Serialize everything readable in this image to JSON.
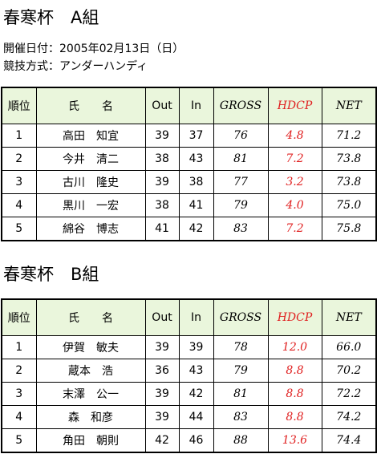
{
  "sections": [
    {
      "title": "春寒杯　A組",
      "info": [
        "開催日付：2005年02月13日（日）",
        "競技方式：アンダーハンディ"
      ],
      "table": {
        "columns": [
          "順位",
          "氏　　名",
          "Out",
          "In",
          "GROSS",
          "HDCP",
          "NET"
        ],
        "rows": [
          [
            "1",
            "高田　知宜",
            "39",
            "37",
            "76",
            "4.8",
            "71.2"
          ],
          [
            "2",
            "今井　清二",
            "38",
            "43",
            "81",
            "7.2",
            "73.8"
          ],
          [
            "3",
            "古川　隆史",
            "39",
            "38",
            "77",
            "3.2",
            "73.8"
          ],
          [
            "4",
            "黒川　一宏",
            "38",
            "41",
            "79",
            "4.0",
            "75.0"
          ],
          [
            "5",
            "綿谷　博志",
            "41",
            "42",
            "83",
            "7.2",
            "75.8"
          ]
        ]
      }
    },
    {
      "title": "春寒杯　B組",
      "table": {
        "columns": [
          "順位",
          "氏　　名",
          "Out",
          "In",
          "GROSS",
          "HDCP",
          "NET"
        ],
        "rows": [
          [
            "1",
            "伊賀　敏夫",
            "39",
            "39",
            "78",
            "12.0",
            "66.0"
          ],
          [
            "2",
            "蔵本　浩",
            "36",
            "43",
            "79",
            "8.8",
            "70.2"
          ],
          [
            "3",
            "末澤　公一",
            "39",
            "42",
            "81",
            "8.8",
            "72.2"
          ],
          [
            "4",
            "森　和彦",
            "39",
            "44",
            "83",
            "8.8",
            "74.2"
          ],
          [
            "5",
            "角田　朝則",
            "42",
            "46",
            "88",
            "13.6",
            "74.4"
          ]
        ]
      }
    }
  ]
}
